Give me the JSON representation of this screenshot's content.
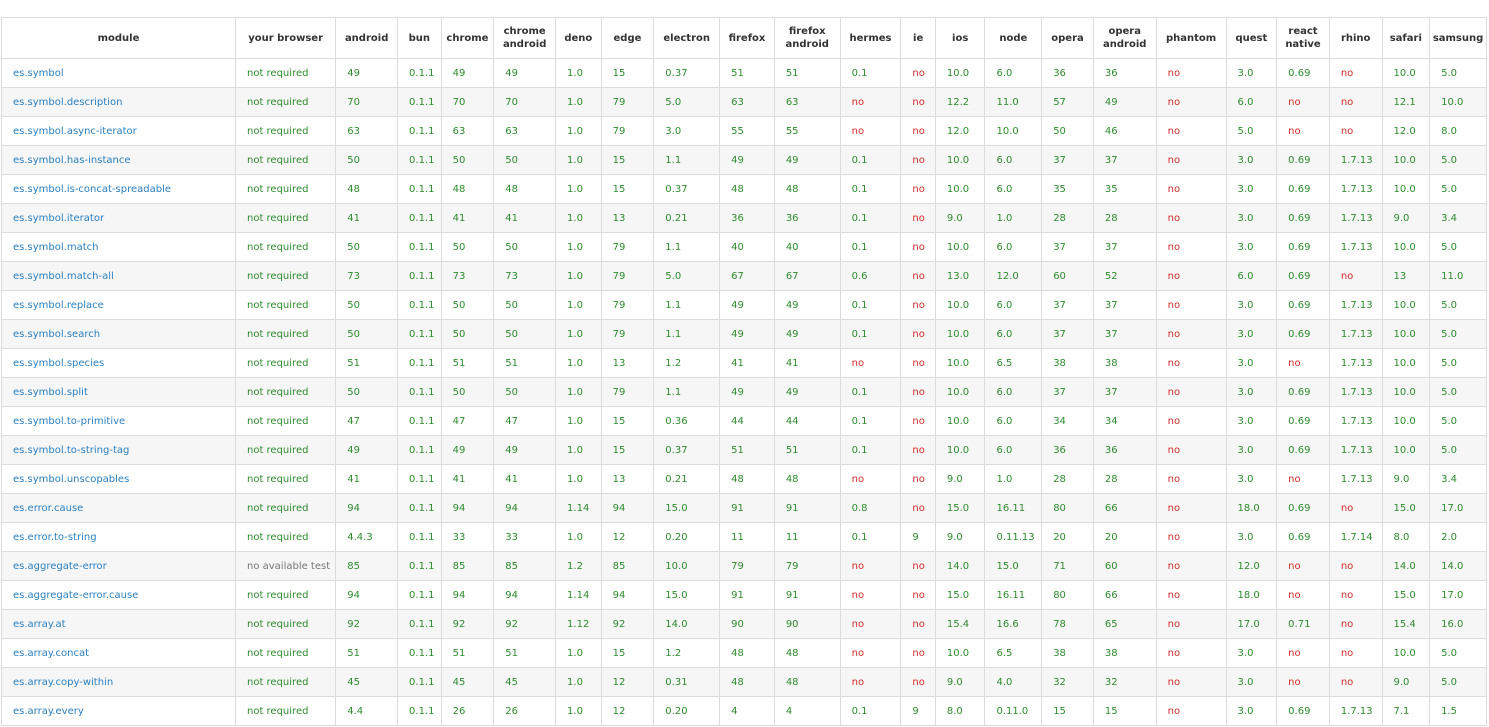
{
  "colors": {
    "module": "#2a7fc0",
    "supported": "#2e8b2e",
    "unsupported": "#d32b2b",
    "na": "#777777"
  },
  "columns": [
    "module",
    "your browser",
    "android",
    "bun",
    "chrome",
    "chrome android",
    "deno",
    "edge",
    "electron",
    "firefox",
    "firefox android",
    "hermes",
    "ie",
    "ios",
    "node",
    "opera",
    "opera android",
    "phantom",
    "quest",
    "react native",
    "rhino",
    "safari",
    "samsung"
  ],
  "rows": [
    [
      "es.symbol",
      "not required",
      "49",
      "0.1.1",
      "49",
      "49",
      "1.0",
      "15",
      "0.37",
      "51",
      "51",
      "0.1",
      "no",
      "10.0",
      "6.0",
      "36",
      "36",
      "no",
      "3.0",
      "0.69",
      "no",
      "10.0",
      "5.0"
    ],
    [
      "es.symbol.description",
      "not required",
      "70",
      "0.1.1",
      "70",
      "70",
      "1.0",
      "79",
      "5.0",
      "63",
      "63",
      "no",
      "no",
      "12.2",
      "11.0",
      "57",
      "49",
      "no",
      "6.0",
      "no",
      "no",
      "12.1",
      "10.0"
    ],
    [
      "es.symbol.async-iterator",
      "not required",
      "63",
      "0.1.1",
      "63",
      "63",
      "1.0",
      "79",
      "3.0",
      "55",
      "55",
      "no",
      "no",
      "12.0",
      "10.0",
      "50",
      "46",
      "no",
      "5.0",
      "no",
      "no",
      "12.0",
      "8.0"
    ],
    [
      "es.symbol.has-instance",
      "not required",
      "50",
      "0.1.1",
      "50",
      "50",
      "1.0",
      "15",
      "1.1",
      "49",
      "49",
      "0.1",
      "no",
      "10.0",
      "6.0",
      "37",
      "37",
      "no",
      "3.0",
      "0.69",
      "1.7.13",
      "10.0",
      "5.0"
    ],
    [
      "es.symbol.is-concat-spreadable",
      "not required",
      "48",
      "0.1.1",
      "48",
      "48",
      "1.0",
      "15",
      "0.37",
      "48",
      "48",
      "0.1",
      "no",
      "10.0",
      "6.0",
      "35",
      "35",
      "no",
      "3.0",
      "0.69",
      "1.7.13",
      "10.0",
      "5.0"
    ],
    [
      "es.symbol.iterator",
      "not required",
      "41",
      "0.1.1",
      "41",
      "41",
      "1.0",
      "13",
      "0.21",
      "36",
      "36",
      "0.1",
      "no",
      "9.0",
      "1.0",
      "28",
      "28",
      "no",
      "3.0",
      "0.69",
      "1.7.13",
      "9.0",
      "3.4"
    ],
    [
      "es.symbol.match",
      "not required",
      "50",
      "0.1.1",
      "50",
      "50",
      "1.0",
      "79",
      "1.1",
      "40",
      "40",
      "0.1",
      "no",
      "10.0",
      "6.0",
      "37",
      "37",
      "no",
      "3.0",
      "0.69",
      "1.7.13",
      "10.0",
      "5.0"
    ],
    [
      "es.symbol.match-all",
      "not required",
      "73",
      "0.1.1",
      "73",
      "73",
      "1.0",
      "79",
      "5.0",
      "67",
      "67",
      "0.6",
      "no",
      "13.0",
      "12.0",
      "60",
      "52",
      "no",
      "6.0",
      "0.69",
      "no",
      "13",
      "11.0"
    ],
    [
      "es.symbol.replace",
      "not required",
      "50",
      "0.1.1",
      "50",
      "50",
      "1.0",
      "79",
      "1.1",
      "49",
      "49",
      "0.1",
      "no",
      "10.0",
      "6.0",
      "37",
      "37",
      "no",
      "3.0",
      "0.69",
      "1.7.13",
      "10.0",
      "5.0"
    ],
    [
      "es.symbol.search",
      "not required",
      "50",
      "0.1.1",
      "50",
      "50",
      "1.0",
      "79",
      "1.1",
      "49",
      "49",
      "0.1",
      "no",
      "10.0",
      "6.0",
      "37",
      "37",
      "no",
      "3.0",
      "0.69",
      "1.7.13",
      "10.0",
      "5.0"
    ],
    [
      "es.symbol.species",
      "not required",
      "51",
      "0.1.1",
      "51",
      "51",
      "1.0",
      "13",
      "1.2",
      "41",
      "41",
      "no",
      "no",
      "10.0",
      "6.5",
      "38",
      "38",
      "no",
      "3.0",
      "no",
      "1.7.13",
      "10.0",
      "5.0"
    ],
    [
      "es.symbol.split",
      "not required",
      "50",
      "0.1.1",
      "50",
      "50",
      "1.0",
      "79",
      "1.1",
      "49",
      "49",
      "0.1",
      "no",
      "10.0",
      "6.0",
      "37",
      "37",
      "no",
      "3.0",
      "0.69",
      "1.7.13",
      "10.0",
      "5.0"
    ],
    [
      "es.symbol.to-primitive",
      "not required",
      "47",
      "0.1.1",
      "47",
      "47",
      "1.0",
      "15",
      "0.36",
      "44",
      "44",
      "0.1",
      "no",
      "10.0",
      "6.0",
      "34",
      "34",
      "no",
      "3.0",
      "0.69",
      "1.7.13",
      "10.0",
      "5.0"
    ],
    [
      "es.symbol.to-string-tag",
      "not required",
      "49",
      "0.1.1",
      "49",
      "49",
      "1.0",
      "15",
      "0.37",
      "51",
      "51",
      "0.1",
      "no",
      "10.0",
      "6.0",
      "36",
      "36",
      "no",
      "3.0",
      "0.69",
      "1.7.13",
      "10.0",
      "5.0"
    ],
    [
      "es.symbol.unscopables",
      "not required",
      "41",
      "0.1.1",
      "41",
      "41",
      "1.0",
      "13",
      "0.21",
      "48",
      "48",
      "no",
      "no",
      "9.0",
      "1.0",
      "28",
      "28",
      "no",
      "3.0",
      "no",
      "1.7.13",
      "9.0",
      "3.4"
    ],
    [
      "es.error.cause",
      "not required",
      "94",
      "0.1.1",
      "94",
      "94",
      "1.14",
      "94",
      "15.0",
      "91",
      "91",
      "0.8",
      "no",
      "15.0",
      "16.11",
      "80",
      "66",
      "no",
      "18.0",
      "0.69",
      "no",
      "15.0",
      "17.0"
    ],
    [
      "es.error.to-string",
      "not required",
      "4.4.3",
      "0.1.1",
      "33",
      "33",
      "1.0",
      "12",
      "0.20",
      "11",
      "11",
      "0.1",
      "9",
      "9.0",
      "0.11.13",
      "20",
      "20",
      "no",
      "3.0",
      "0.69",
      "1.7.14",
      "8.0",
      "2.0"
    ],
    [
      "es.aggregate-error",
      "no available test",
      "85",
      "0.1.1",
      "85",
      "85",
      "1.2",
      "85",
      "10.0",
      "79",
      "79",
      "no",
      "no",
      "14.0",
      "15.0",
      "71",
      "60",
      "no",
      "12.0",
      "no",
      "no",
      "14.0",
      "14.0"
    ],
    [
      "es.aggregate-error.cause",
      "not required",
      "94",
      "0.1.1",
      "94",
      "94",
      "1.14",
      "94",
      "15.0",
      "91",
      "91",
      "no",
      "no",
      "15.0",
      "16.11",
      "80",
      "66",
      "no",
      "18.0",
      "no",
      "no",
      "15.0",
      "17.0"
    ],
    [
      "es.array.at",
      "not required",
      "92",
      "0.1.1",
      "92",
      "92",
      "1.12",
      "92",
      "14.0",
      "90",
      "90",
      "no",
      "no",
      "15.4",
      "16.6",
      "78",
      "65",
      "no",
      "17.0",
      "0.71",
      "no",
      "15.4",
      "16.0"
    ],
    [
      "es.array.concat",
      "not required",
      "51",
      "0.1.1",
      "51",
      "51",
      "1.0",
      "15",
      "1.2",
      "48",
      "48",
      "no",
      "no",
      "10.0",
      "6.5",
      "38",
      "38",
      "no",
      "3.0",
      "no",
      "no",
      "10.0",
      "5.0"
    ],
    [
      "es.array.copy-within",
      "not required",
      "45",
      "0.1.1",
      "45",
      "45",
      "1.0",
      "12",
      "0.31",
      "48",
      "48",
      "no",
      "no",
      "9.0",
      "4.0",
      "32",
      "32",
      "no",
      "3.0",
      "no",
      "no",
      "9.0",
      "5.0"
    ],
    [
      "es.array.every",
      "not required",
      "4.4",
      "0.1.1",
      "26",
      "26",
      "1.0",
      "12",
      "0.20",
      "4",
      "4",
      "0.1",
      "9",
      "8.0",
      "0.11.0",
      "15",
      "15",
      "no",
      "3.0",
      "0.69",
      "1.7.13",
      "7.1",
      "1.5"
    ]
  ]
}
